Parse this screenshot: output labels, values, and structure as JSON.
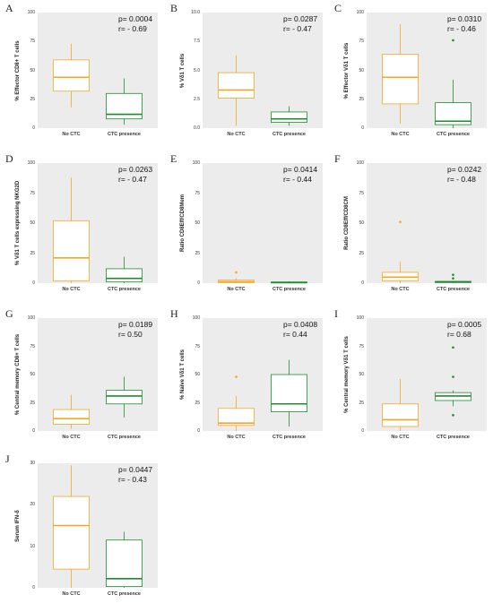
{
  "colors": {
    "no_ctc": "#f5a623",
    "ctc_presence": "#1e8c2e",
    "background": "#ececec"
  },
  "chart_data": [
    {
      "panel": "A",
      "type": "box",
      "ylabel": "% Effector CD8+ T cells",
      "categories": [
        "No CTC",
        "CTC presence"
      ],
      "yticks": [
        0,
        25,
        50,
        75,
        100
      ],
      "ylim": [
        0,
        100
      ],
      "p_text": "p= 0.0004",
      "r_text": "r= - 0.69",
      "boxes": [
        {
          "min": 18,
          "q1": 32,
          "median": 44,
          "q3": 59,
          "max": 73,
          "outliers": []
        },
        {
          "min": 3,
          "q1": 8,
          "median": 12,
          "q3": 30,
          "max": 43,
          "outliers": []
        }
      ]
    },
    {
      "panel": "B",
      "type": "box",
      "ylabel": "% Vδ1 T cells",
      "categories": [
        "No CTC",
        "CTC presence"
      ],
      "yticks": [
        "0.0",
        "2.5",
        "5.0",
        "7.5",
        "10.0"
      ],
      "ylim": [
        0,
        10
      ],
      "p_text": "p= 0.0287",
      "r_text": "r= - 0.47",
      "boxes": [
        {
          "min": 0.2,
          "q1": 2.6,
          "median": 3.3,
          "q3": 4.8,
          "max": 6.3,
          "outliers": []
        },
        {
          "min": 0.2,
          "q1": 0.5,
          "median": 0.8,
          "q3": 1.4,
          "max": 1.9,
          "outliers": []
        }
      ]
    },
    {
      "panel": "C",
      "type": "box",
      "ylabel": "% Effector Vδ1 T cells",
      "categories": [
        "No CTC",
        "CTC presence"
      ],
      "yticks": [
        0,
        25,
        50,
        75,
        100
      ],
      "ylim": [
        0,
        100
      ],
      "p_text": "p= 0.0310",
      "r_text": "r= - 0.46",
      "boxes": [
        {
          "min": 4,
          "q1": 21,
          "median": 44,
          "q3": 64,
          "max": 90,
          "outliers": []
        },
        {
          "min": 0,
          "q1": 3,
          "median": 6,
          "q3": 22,
          "max": 42,
          "outliers": [
            76
          ]
        }
      ]
    },
    {
      "panel": "D",
      "type": "box",
      "ylabel": "% Vδ1 T cells expressing NKG2D",
      "categories": [
        "No CTC",
        "CTC presence"
      ],
      "yticks": [
        0,
        25,
        50,
        75,
        100
      ],
      "ylim": [
        0,
        100
      ],
      "p_text": "p= 0.0263",
      "r_text": "r= - 0.47",
      "boxes": [
        {
          "min": 0,
          "q1": 2,
          "median": 21,
          "q3": 52,
          "max": 88,
          "outliers": []
        },
        {
          "min": 0,
          "q1": 1,
          "median": 4,
          "q3": 12,
          "max": 22,
          "outliers": []
        }
      ]
    },
    {
      "panel": "E",
      "type": "box",
      "ylabel": "Ratio CD8Eff/CD8Mem",
      "categories": [
        "No CTC",
        "CTC presence"
      ],
      "yticks": [
        0,
        25,
        50,
        75,
        100
      ],
      "ylim": [
        0,
        100
      ],
      "p_text": "p= 0.0414",
      "r_text": "r= - 0.44",
      "boxes": [
        {
          "min": 0,
          "q1": 0.5,
          "median": 1.2,
          "q3": 2.5,
          "max": 4,
          "outliers": [
            9
          ]
        },
        {
          "min": 0,
          "q1": 0.2,
          "median": 0.5,
          "q3": 1,
          "max": 1.5,
          "outliers": []
        }
      ]
    },
    {
      "panel": "F",
      "type": "box",
      "ylabel": "Ratio CD8Eff/CD8CM",
      "categories": [
        "No CTC",
        "CTC presence"
      ],
      "yticks": [
        0,
        25,
        50,
        75,
        100
      ],
      "ylim": [
        0,
        100
      ],
      "p_text": "p= 0.0242",
      "r_text": "r= - 0.48",
      "boxes": [
        {
          "min": 0,
          "q1": 2,
          "median": 5,
          "q3": 9,
          "max": 18,
          "outliers": [
            51
          ]
        },
        {
          "min": 0,
          "q1": 0.5,
          "median": 1,
          "q3": 1.5,
          "max": 2,
          "outliers": [
            4,
            7
          ]
        }
      ]
    },
    {
      "panel": "G",
      "type": "box",
      "ylabel": "% Central memory CD8+ T cells",
      "categories": [
        "No CTC",
        "CTC presence"
      ],
      "yticks": [
        0,
        25,
        50,
        75,
        100
      ],
      "ylim": [
        0,
        100
      ],
      "p_text": "p= 0.0189",
      "r_text": "r= 0.50",
      "boxes": [
        {
          "min": 2,
          "q1": 6,
          "median": 11,
          "q3": 19,
          "max": 32,
          "outliers": []
        },
        {
          "min": 12,
          "q1": 24,
          "median": 31,
          "q3": 36,
          "max": 48,
          "outliers": []
        }
      ]
    },
    {
      "panel": "H",
      "type": "box",
      "ylabel": "% Naïve Vδ1 T cells",
      "categories": [
        "No CTC",
        "CTC presence"
      ],
      "yticks": [
        0,
        25,
        50,
        75,
        100
      ],
      "ylim": [
        0,
        100
      ],
      "p_text": "p= 0.0408",
      "r_text": "r= 0.44",
      "boxes": [
        {
          "min": 0,
          "q1": 5,
          "median": 7,
          "q3": 20,
          "max": 31,
          "outliers": [
            48
          ]
        },
        {
          "min": 4,
          "q1": 17,
          "median": 24,
          "q3": 50,
          "max": 63,
          "outliers": []
        }
      ]
    },
    {
      "panel": "I",
      "type": "box",
      "ylabel": "% Central memory Vδ1 T cells",
      "categories": [
        "No CTC",
        "CTC presence"
      ],
      "yticks": [
        0,
        25,
        50,
        75,
        100
      ],
      "ylim": [
        0,
        100
      ],
      "p_text": "p= 0.0005",
      "r_text": "r= 0.68",
      "boxes": [
        {
          "min": 0,
          "q1": 4,
          "median": 10,
          "q3": 24,
          "max": 46,
          "outliers": []
        },
        {
          "min": 22,
          "q1": 27,
          "median": 31,
          "q3": 34,
          "max": 36,
          "outliers": [
            14,
            48,
            74
          ]
        }
      ]
    },
    {
      "panel": "J",
      "type": "box",
      "ylabel": "Serum IFN-δ",
      "categories": [
        "No CTC",
        "CTC presence"
      ],
      "yticks": [
        0,
        10,
        20,
        30
      ],
      "ylim": [
        0,
        30
      ],
      "p_text": "p= 0.0447",
      "r_text": "r= - 0.43",
      "boxes": [
        {
          "min": 0,
          "q1": 4.5,
          "median": 15,
          "q3": 22,
          "max": 29.5,
          "outliers": []
        },
        {
          "min": 0,
          "q1": 0.3,
          "median": 2.2,
          "q3": 11.5,
          "max": 13.5,
          "outliers": []
        }
      ]
    }
  ]
}
